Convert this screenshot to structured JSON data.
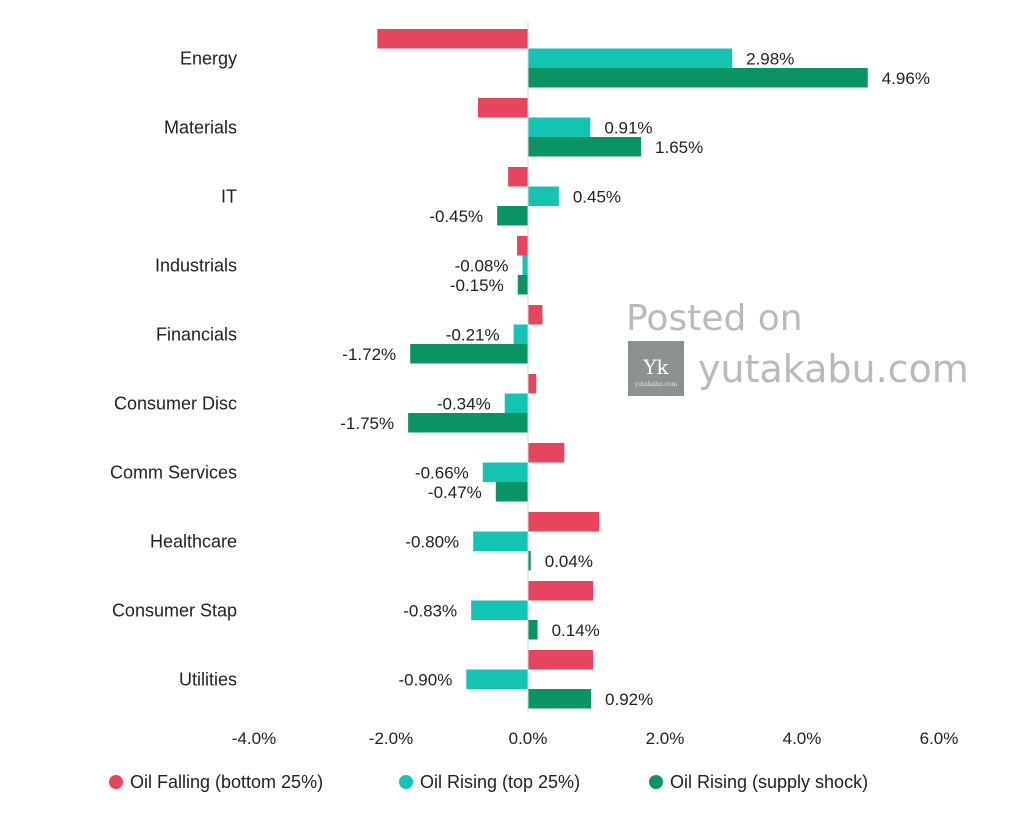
{
  "chart_data": {
    "type": "bar",
    "orientation": "horizontal",
    "categories": [
      "Energy",
      "Materials",
      "IT",
      "Industrials",
      "Financials",
      "Consumer Disc",
      "Comm Services",
      "Healthcare",
      "Consumer Stap",
      "Utilities"
    ],
    "series": [
      {
        "name": "Oil Falling (bottom 25%)",
        "color": "#e8435f",
        "values": [
          -2.2,
          -0.73,
          -0.29,
          -0.16,
          0.21,
          0.12,
          0.53,
          1.04,
          0.95,
          0.95
        ],
        "labels": [
          "",
          "",
          "",
          "",
          "",
          "",
          "",
          "",
          "",
          ""
        ]
      },
      {
        "name": "Oil Rising (top 25%)",
        "color": "#14c4b2",
        "values": [
          2.98,
          0.91,
          0.45,
          -0.08,
          -0.21,
          -0.34,
          -0.66,
          -0.8,
          -0.83,
          -0.9
        ],
        "labels": [
          "2.98%",
          "0.91%",
          "0.45%",
          "-0.08%",
          "-0.21%",
          "-0.34%",
          "-0.66%",
          "-0.80%",
          "-0.83%",
          "-0.90%"
        ]
      },
      {
        "name": "Oil Rising (supply shock)",
        "color": "#0a9463",
        "values": [
          4.96,
          1.65,
          -0.45,
          -0.15,
          -1.72,
          -1.75,
          -0.47,
          0.04,
          0.14,
          0.92
        ],
        "labels": [
          "4.96%",
          "1.65%",
          "-0.45%",
          "-0.15%",
          "-1.72%",
          "-1.75%",
          "-0.47%",
          "0.04%",
          "0.14%",
          "0.92%"
        ]
      }
    ],
    "xlim": [
      -4,
      6
    ],
    "xticks": [
      -4,
      -2,
      0,
      2,
      4,
      6
    ],
    "xtick_labels": [
      "-4.0%",
      "-2.0%",
      "0.0%",
      "2.0%",
      "4.0%",
      "6.0%"
    ],
    "grid": false,
    "legend_position": "bottom"
  },
  "watermark": {
    "line1": "Posted on",
    "line2": "yutakabu.com",
    "logo_mark": "Yk",
    "logo_caption": "yutakabu.com"
  }
}
